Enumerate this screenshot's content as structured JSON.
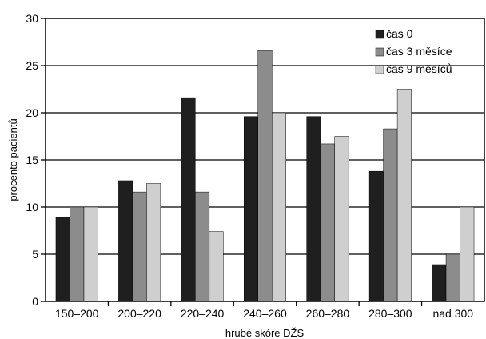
{
  "chart_data": {
    "type": "bar",
    "xlabel": "hrubé skóre DŽS",
    "ylabel": "procento pacientů",
    "ylim": [
      0,
      30
    ],
    "yticks": [
      0,
      5,
      10,
      15,
      20,
      25,
      30
    ],
    "grid": true,
    "legend_position": "top-right",
    "categories": [
      "150–200",
      "200–220",
      "220–240",
      "240–260",
      "260–280",
      "280–300",
      "nad 300"
    ],
    "series": [
      {
        "name": "čas 0",
        "color": "#1f1f1f",
        "values": [
          8.9,
          12.8,
          21.6,
          19.6,
          19.6,
          13.8,
          3.9
        ]
      },
      {
        "name": "čas 3  měsíce",
        "color": "#8c8c8c",
        "values": [
          10.0,
          11.6,
          11.6,
          26.6,
          16.7,
          18.3,
          5.0
        ]
      },
      {
        "name": "čas 9 měsíců",
        "color": "#cfcfcf",
        "values": [
          10.0,
          12.5,
          7.4,
          20.0,
          17.5,
          22.5,
          10.0
        ]
      }
    ]
  }
}
